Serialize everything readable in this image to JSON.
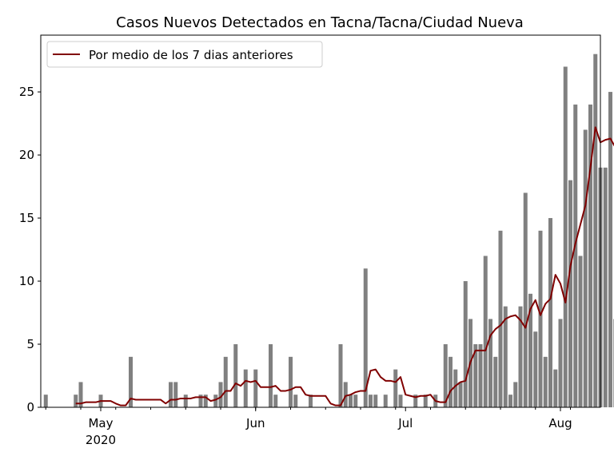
{
  "chart_data": {
    "type": "bar",
    "title": "Casos Nuevos Detectados en Tacna/Tacna/Ciudad Nueva",
    "xlabel": "",
    "ylabel": "",
    "start_date": "2020-04-20",
    "xlim": [
      "2020-04-19",
      "2020-08-09"
    ],
    "ylim": [
      0,
      29.5
    ],
    "yticks": [
      0,
      5,
      10,
      15,
      20,
      25
    ],
    "xticks": [
      {
        "date": "2020-05-01",
        "label": "May",
        "sublabel": "2020"
      },
      {
        "date": "2020-06-01",
        "label": "Jun",
        "sublabel": ""
      },
      {
        "date": "2020-07-01",
        "label": "Jul",
        "sublabel": ""
      },
      {
        "date": "2020-08-01",
        "label": "Aug",
        "sublabel": ""
      }
    ],
    "bar_color": "#808080",
    "line_color": "#800000",
    "grid": false,
    "legend": {
      "placement": "top-left",
      "entries": [
        "Por medio de los 7 dias anteriores"
      ]
    },
    "series": [
      {
        "kind": "bar",
        "values": [
          1,
          0,
          0,
          0,
          0,
          0,
          1,
          2,
          0,
          0,
          0,
          1,
          0,
          0,
          0,
          0,
          0,
          4,
          0,
          0,
          0,
          0,
          0,
          0,
          0,
          2,
          2,
          0,
          1,
          0,
          0,
          1,
          1,
          0,
          1,
          2,
          4,
          0,
          5,
          0,
          3,
          0,
          3,
          0,
          0,
          5,
          1,
          0,
          0,
          4,
          1,
          0,
          0,
          1,
          0,
          0,
          0,
          0,
          0,
          5,
          2,
          1,
          1,
          0,
          11,
          1,
          1,
          0,
          1,
          0,
          3,
          1,
          0,
          0,
          1,
          0,
          1,
          0,
          1,
          0,
          5,
          4,
          3,
          2,
          10,
          7,
          5,
          5,
          12,
          7,
          4,
          14,
          8,
          1,
          2,
          8,
          17,
          9,
          6,
          14,
          4,
          15,
          3,
          7,
          27,
          18,
          24,
          12,
          22,
          24,
          28,
          19,
          19,
          25,
          7
        ]
      },
      {
        "kind": "line",
        "name": "Por medio de los 7 dias anteriores",
        "values": [
          null,
          null,
          null,
          null,
          null,
          null,
          0.3,
          0.3,
          0.4,
          0.4,
          0.4,
          0.5,
          0.5,
          0.5,
          0.3,
          0.15,
          0.15,
          0.7,
          0.6,
          0.6,
          0.6,
          0.6,
          0.6,
          0.6,
          0.3,
          0.6,
          0.6,
          0.7,
          0.7,
          0.7,
          0.8,
          0.8,
          0.8,
          0.5,
          0.6,
          0.8,
          1.3,
          1.3,
          1.9,
          1.7,
          2.1,
          2.0,
          2.1,
          1.6,
          1.6,
          1.6,
          1.7,
          1.3,
          1.3,
          1.4,
          1.6,
          1.6,
          1.0,
          0.9,
          0.9,
          0.9,
          0.9,
          0.3,
          0.15,
          0.15,
          0.9,
          1.0,
          1.2,
          1.3,
          1.3,
          2.9,
          3.0,
          2.4,
          2.1,
          2.1,
          2.0,
          2.4,
          1.0,
          0.9,
          0.8,
          0.9,
          0.9,
          1.0,
          0.5,
          0.4,
          0.4,
          1.3,
          1.7,
          2.0,
          2.1,
          3.6,
          4.5,
          4.5,
          4.5,
          5.7,
          6.2,
          6.5,
          7.0,
          7.2,
          7.3,
          6.9,
          6.3,
          7.8,
          8.5,
          7.3,
          8.2,
          8.6,
          10.5,
          9.8,
          8.3,
          11.2,
          13.0,
          14.5,
          16.0,
          19.0,
          22.2,
          21.0,
          21.2,
          21.3,
          20.6
        ]
      }
    ]
  }
}
